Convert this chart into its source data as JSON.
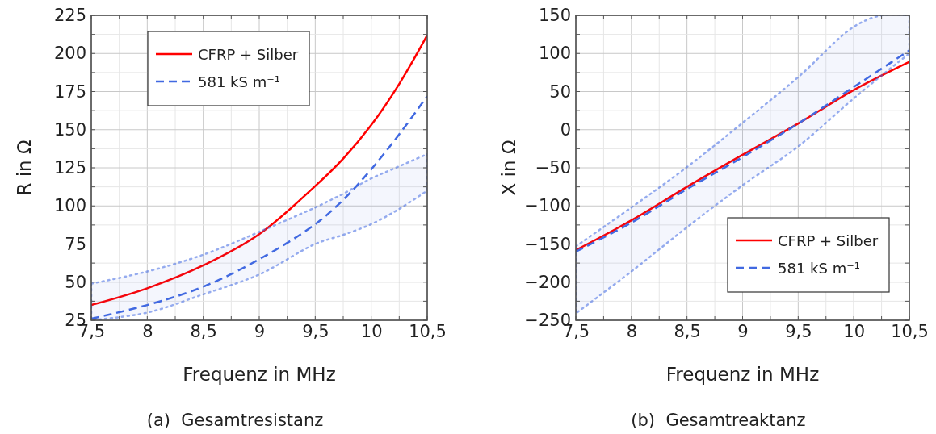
{
  "chart_data": [
    {
      "type": "line",
      "xlabel": "Frequenz in MHz",
      "ylabel": "R in Ω",
      "annotations": [
        "(a)  Gesamtresistanz"
      ],
      "legend": "top left",
      "grid": true,
      "xlim": [
        7.5,
        10.5
      ],
      "ylim": [
        25,
        225
      ],
      "xticks": [
        {
          "value": 7.5,
          "label": "7,5"
        },
        {
          "value": 7.75,
          "label": null
        },
        8,
        {
          "value": 8.25,
          "label": null
        },
        {
          "value": 8.5,
          "label": "8,5"
        },
        {
          "value": 8.75,
          "label": null
        },
        9,
        {
          "value": 9.25,
          "label": null
        },
        {
          "value": 9.5,
          "label": "9,5"
        },
        {
          "value": 9.75,
          "label": null
        },
        10,
        {
          "value": 10.25,
          "label": null
        },
        {
          "value": 10.5,
          "label": "10,5"
        }
      ],
      "yticks": [
        25,
        {
          "value": 37.5,
          "label": null
        },
        50,
        {
          "value": 62.5,
          "label": null
        },
        75,
        {
          "value": 87.5,
          "label": null
        },
        100,
        {
          "value": 112.5,
          "label": null
        },
        125,
        {
          "value": 137.5,
          "label": null
        },
        150,
        {
          "value": 162.5,
          "label": null
        },
        175,
        {
          "value": 187.5,
          "label": null
        },
        200,
        {
          "value": 212.5,
          "label": null
        },
        225
      ],
      "series": [
        {
          "name": "CFRP + Silber",
          "color": "#ff0000",
          "line_style": "solid",
          "x": [
            7.5,
            8,
            8.5,
            9,
            9.5,
            9.75,
            10,
            10.25,
            10.5
          ],
          "values": [
            35,
            46,
            61,
            81.5,
            113,
            131,
            153,
            180,
            212
          ]
        },
        {
          "name": "581 kS m⁻¹",
          "color": "#4169e1",
          "line_style": "dashed",
          "x": [
            7.5,
            8,
            8.5,
            9,
            9.5,
            9.75,
            10,
            10.25,
            10.5
          ],
          "values": [
            26,
            35,
            47,
            65,
            88,
            104,
            124,
            147,
            172
          ],
          "lower": [
            25,
            30,
            42,
            55,
            75,
            81,
            88,
            98,
            110
          ],
          "upper": [
            49,
            57,
            68,
            83,
            99,
            108,
            118,
            126,
            134
          ]
        }
      ]
    },
    {
      "type": "line",
      "xlabel": "Frequenz in MHz",
      "ylabel": "X in Ω",
      "annotations": [
        "(b)  Gesamtreaktanz"
      ],
      "legend": "bottom right",
      "grid": true,
      "xlim": [
        7.5,
        10.5
      ],
      "ylim": [
        -250,
        150
      ],
      "xticks": [
        {
          "value": 7.5,
          "label": "7,5"
        },
        {
          "value": 7.75,
          "label": null
        },
        8,
        {
          "value": 8.25,
          "label": null
        },
        {
          "value": 8.5,
          "label": "8,5"
        },
        {
          "value": 8.75,
          "label": null
        },
        9,
        {
          "value": 9.25,
          "label": null
        },
        {
          "value": 9.5,
          "label": "9,5"
        },
        {
          "value": 9.75,
          "label": null
        },
        10,
        {
          "value": 10.25,
          "label": null
        },
        {
          "value": 10.5,
          "label": "10,5"
        }
      ],
      "yticks": [
        {
          "value": -250,
          "label": "−250"
        },
        {
          "value": -225,
          "label": null
        },
        {
          "value": -200,
          "label": "−200"
        },
        {
          "value": -175,
          "label": null
        },
        {
          "value": -150,
          "label": "−150"
        },
        {
          "value": -125,
          "label": null
        },
        {
          "value": -100,
          "label": "−100"
        },
        {
          "value": -75,
          "label": null
        },
        {
          "value": -50,
          "label": "−50"
        },
        {
          "value": -25,
          "label": null
        },
        0,
        {
          "value": 25,
          "label": null
        },
        50,
        {
          "value": 75,
          "label": null
        },
        100,
        {
          "value": 125,
          "label": null
        },
        150
      ],
      "series": [
        {
          "name": "CFRP + Silber",
          "color": "#ff0000",
          "line_style": "solid",
          "x": [
            7.5,
            8,
            8.5,
            9,
            9.5,
            10,
            10.5
          ],
          "values": [
            -158,
            -119,
            -75,
            -33,
            8,
            52,
            89
          ]
        },
        {
          "name": "581 kS m⁻¹",
          "color": "#4169e1",
          "line_style": "dashed",
          "x": [
            7.5,
            8,
            8.5,
            9,
            9.5,
            10,
            10.25,
            10.5
          ],
          "values": [
            -160,
            -122,
            -78,
            -36,
            8,
            56,
            80,
            104
          ],
          "lower": [
            -241,
            -186,
            -128,
            -73,
            -22,
            41,
            71,
            100
          ],
          "upper": [
            -153,
            -102,
            -49,
            9,
            69,
            135,
            150,
            150
          ]
        }
      ]
    }
  ]
}
